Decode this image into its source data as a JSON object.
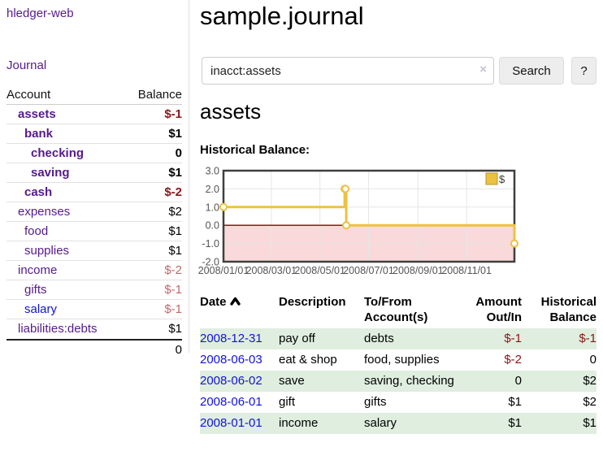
{
  "colors": {
    "link_purple": "#551a8b",
    "link_blue": "#1212dd",
    "negative_strong": "#8b1515",
    "negative_soft": "#c0696b",
    "stripe_green": "#dfeedf",
    "chart_gold": "#edc240",
    "chart_negative_region": "#f9d9d9",
    "chart_zero_line": "#8b0000"
  },
  "sidebar": {
    "brand": "hledger-web",
    "nav": {
      "journal": "Journal"
    },
    "accounts_header": {
      "account": "Account",
      "balance": "Balance"
    },
    "accounts": [
      {
        "name": "assets",
        "depth": 1,
        "balance": "$-1",
        "emph": true
      },
      {
        "name": "bank",
        "depth": 2,
        "balance": "$1",
        "emph": true
      },
      {
        "name": "checking",
        "depth": 3,
        "balance": "0",
        "emph": true
      },
      {
        "name": "saving",
        "depth": 3,
        "balance": "$1",
        "emph": true
      },
      {
        "name": "cash",
        "depth": 2,
        "balance": "$-2",
        "emph": true
      },
      {
        "name": "expenses",
        "depth": 1,
        "balance": "$2",
        "emph": false
      },
      {
        "name": "food",
        "depth": 2,
        "balance": "$1",
        "emph": false
      },
      {
        "name": "supplies",
        "depth": 2,
        "balance": "$1",
        "emph": false
      },
      {
        "name": "income",
        "depth": 1,
        "balance": "$-2",
        "emph": false
      },
      {
        "name": "gifts",
        "depth": 2,
        "balance": "$-1",
        "emph": false
      },
      {
        "name": "salary",
        "depth": 2,
        "balance": "$-1",
        "emph": false,
        "link_color": "blue"
      },
      {
        "name": "liabilities:debts",
        "depth": 1,
        "balance": "$1",
        "emph": false
      }
    ],
    "total": "0"
  },
  "main": {
    "title": "sample.journal",
    "search": {
      "value": "inacct:assets",
      "clear_icon": "×",
      "button": "Search",
      "help": "?"
    },
    "account_heading": "assets",
    "chart_label": "Historical Balance:"
  },
  "chart_data": {
    "type": "line",
    "title": "Historical Balance",
    "series": [
      {
        "name": "$",
        "color": "#edc240",
        "x": [
          "2008-01-01",
          "2008-06-01",
          "2008-06-02",
          "2008-06-03",
          "2008-12-31"
        ],
        "values": [
          1,
          2,
          2,
          0,
          -1
        ],
        "step": true
      }
    ],
    "x_ticks": [
      "2008/01/01",
      "2008/03/01",
      "2008/05/01",
      "2008/07/01",
      "2008/09/01",
      "2008/11/01"
    ],
    "y_ticks": [
      3.0,
      2.0,
      1.0,
      0.0,
      -1.0,
      -2.0
    ],
    "ylim": [
      -2,
      3
    ],
    "x_range": [
      "2008-01-01",
      "2008-12-31"
    ],
    "grid": true,
    "legend": "$",
    "legend_position": "top-right",
    "negative_region": true
  },
  "register": {
    "headers": [
      {
        "line1": "Date",
        "line2": "",
        "align": "left",
        "sortable": true
      },
      {
        "line1": "Description",
        "line2": "",
        "align": "left"
      },
      {
        "line1": "To/From",
        "line2": "Account(s)",
        "align": "left"
      },
      {
        "line1": "Amount",
        "line2": "Out/In",
        "align": "right"
      },
      {
        "line1": "Historical",
        "line2": "Balance",
        "align": "right"
      }
    ],
    "rows": [
      {
        "date": "2008-12-31",
        "description": "pay off",
        "accounts": "debts",
        "amount": "$-1",
        "balance": "$-1"
      },
      {
        "date": "2008-06-03",
        "description": "eat & shop",
        "accounts": "food, supplies",
        "amount": "$-2",
        "balance": "0"
      },
      {
        "date": "2008-06-02",
        "description": "save",
        "accounts": "saving, checking",
        "amount": "0",
        "balance": "$2"
      },
      {
        "date": "2008-06-01",
        "description": "gift",
        "accounts": "gifts",
        "amount": "$1",
        "balance": "$2"
      },
      {
        "date": "2008-01-01",
        "description": "income",
        "accounts": "salary",
        "amount": "$1",
        "balance": "$1"
      }
    ]
  }
}
